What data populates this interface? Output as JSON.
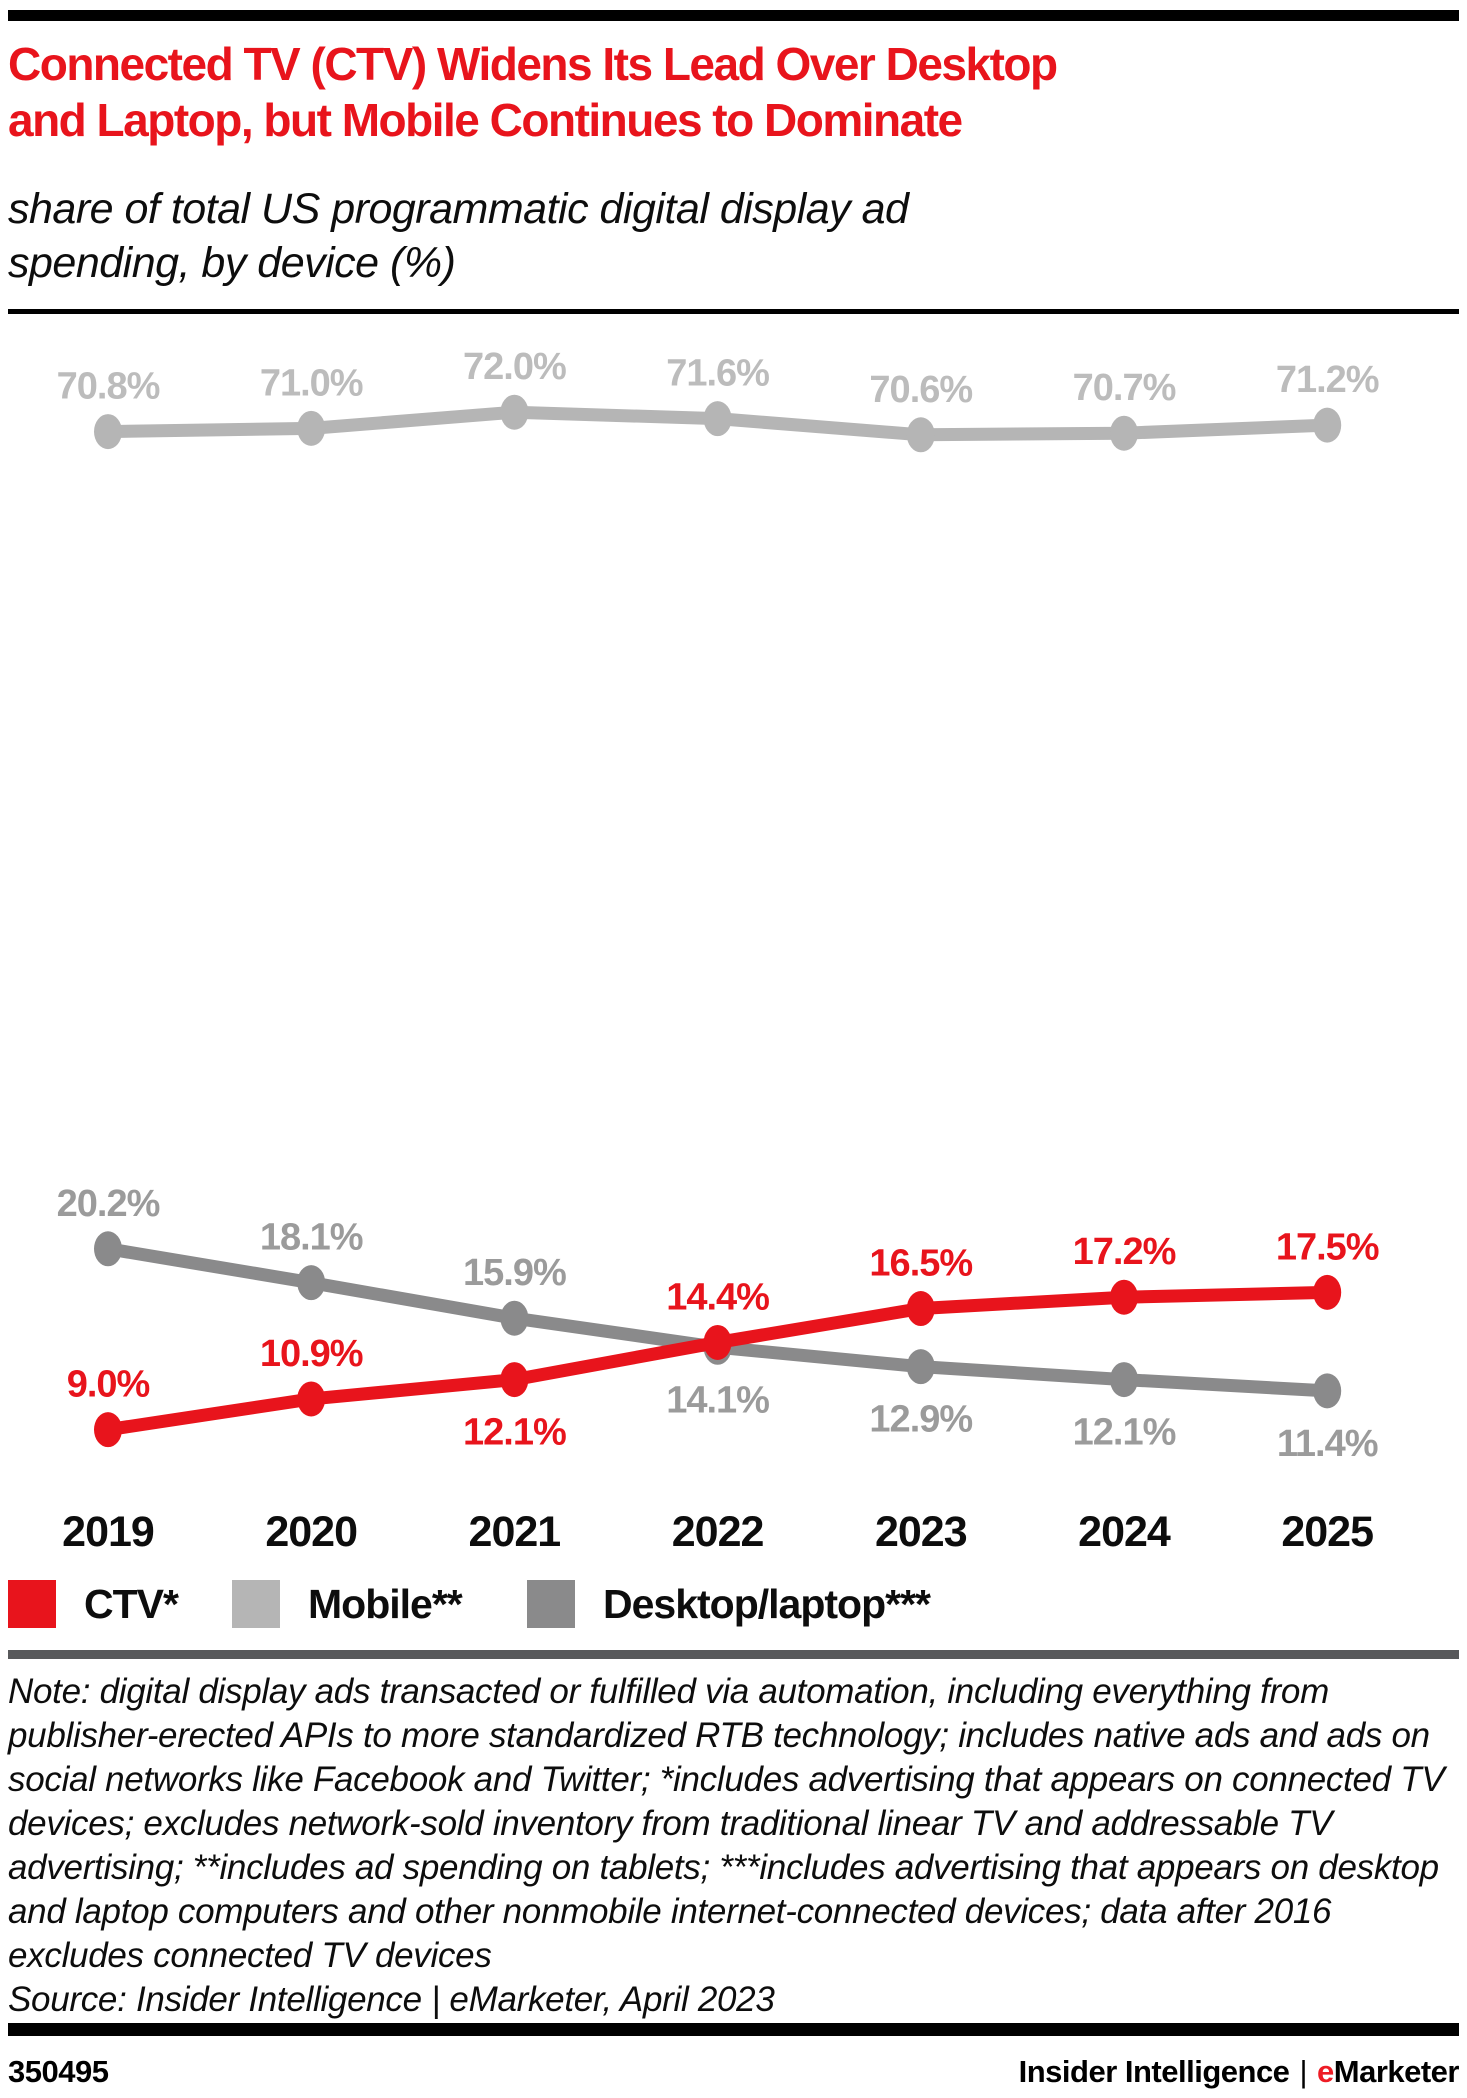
{
  "header": {
    "title_line1": "Connected TV (CTV) Widens Its Lead Over Desktop",
    "title_line2": "and Laptop, but Mobile Continues to Dominate",
    "subtitle_line1": "share of total US programmatic digital display ad",
    "subtitle_line2": "spending, by device (%)"
  },
  "chart_data": {
    "type": "line",
    "title": "Connected TV (CTV) Widens Its Lead Over Desktop and Laptop, but Mobile Continues to Dominate",
    "subtitle": "share of total US programmatic digital display ad spending, by device (%)",
    "x": [
      "2019",
      "2020",
      "2021",
      "2022",
      "2023",
      "2024",
      "2025"
    ],
    "value_suffix": "%",
    "ylim": [
      0,
      100
    ],
    "grid": false,
    "legend_position": "bottom",
    "series": [
      {
        "id": "ctv",
        "name": "CTV*",
        "color": "#e8141c",
        "label_color": "#e8141c",
        "values": [
          9.0,
          10.9,
          12.1,
          14.4,
          16.5,
          17.2,
          17.5
        ],
        "label_positions": [
          "above",
          "above",
          "below",
          "above",
          "above",
          "above",
          "above"
        ]
      },
      {
        "id": "mobile",
        "name": "Mobile**",
        "color": "#b5b5b5",
        "label_color": "#bcbcbc",
        "values": [
          70.8,
          71.0,
          72.0,
          71.6,
          70.6,
          70.7,
          71.2
        ],
        "label_positions": [
          "above",
          "above",
          "above",
          "above",
          "above",
          "above",
          "above"
        ]
      },
      {
        "id": "desktop",
        "name": "Desktop/laptop***",
        "color": "#8a8a8b",
        "label_color": "#9b9b9b",
        "values": [
          20.2,
          18.1,
          15.9,
          14.1,
          12.9,
          12.1,
          11.4
        ],
        "label_positions": [
          "above",
          "above",
          "above",
          "below",
          "below",
          "below",
          "below"
        ]
      }
    ]
  },
  "legend": {
    "items": [
      {
        "label": "CTV*",
        "swatch": "ctv"
      },
      {
        "label": "Mobile**",
        "swatch": "mobile"
      },
      {
        "label": "Desktop/laptop***",
        "swatch": "desktop"
      }
    ]
  },
  "note": {
    "text": "Note: digital display ads transacted or fulfilled via automation, including everything from publisher-erected APIs to more standardized RTB technology; includes native ads and ads on social networks like Facebook and Twitter; *includes advertising that appears on connected TV devices; excludes network-sold inventory from traditional linear TV and addressable TV advertising; **includes ad spending on tablets; ***includes advertising that appears on desktop and laptop computers and other nonmobile internet-connected devices; data after 2016 excludes connected TV devices",
    "source": "Source: Insider Intelligence | eMarketer, April 2023"
  },
  "footer": {
    "chart_id": "350495",
    "brand_left": "Insider Intelligence",
    "separator": "|",
    "brand_e": "e",
    "brand_rest": "Marketer"
  }
}
